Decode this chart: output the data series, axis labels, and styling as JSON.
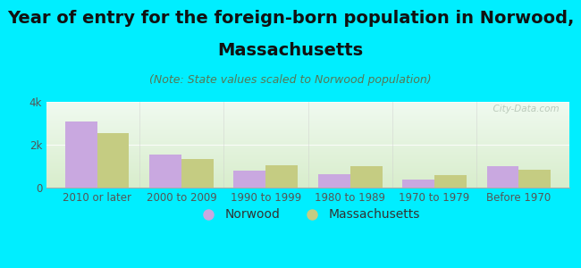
{
  "title_line1": "Year of entry for the foreign-born population in Norwood,",
  "title_line2": "Massachusetts",
  "subtitle": "(Note: State values scaled to Norwood population)",
  "categories": [
    "2010 or later",
    "2000 to 2009",
    "1990 to 1999",
    "1980 to 1989",
    "1970 to 1979",
    "Before 1970"
  ],
  "norwood_values": [
    3100,
    1550,
    780,
    630,
    390,
    1000
  ],
  "massachusetts_values": [
    2550,
    1350,
    1050,
    980,
    580,
    830
  ],
  "norwood_color": "#c9a8e0",
  "massachusetts_color": "#c5cc82",
  "background_outer": "#00eeff",
  "background_inner_top": "#f0faf0",
  "background_inner_bottom": "#d8edcc",
  "ylim": [
    0,
    4000
  ],
  "yticks": [
    0,
    2000,
    4000
  ],
  "ytick_labels": [
    "0",
    "2k",
    "4k"
  ],
  "bar_width": 0.38,
  "title_fontsize": 14,
  "subtitle_fontsize": 9,
  "tick_fontsize": 8.5,
  "legend_fontsize": 10,
  "axis_label_color": "#555555",
  "title_color": "#111111",
  "subtitle_color": "#557755",
  "watermark": "  City-Data.com"
}
